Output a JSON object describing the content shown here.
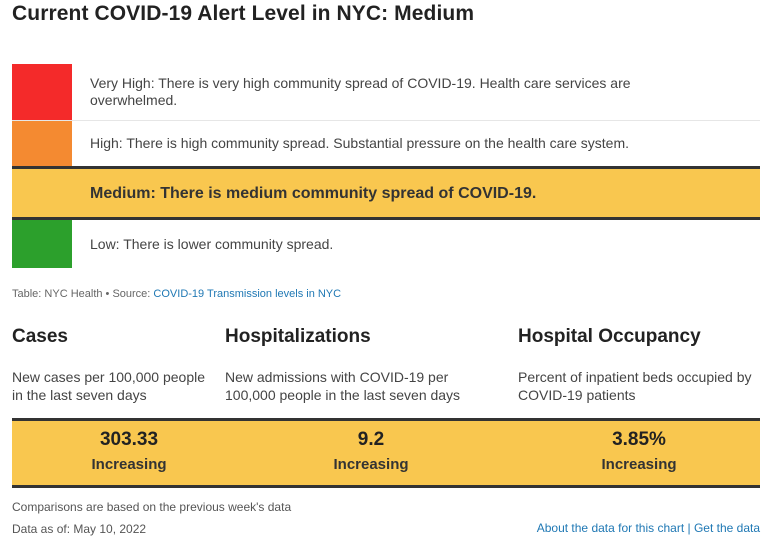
{
  "title": "Current COVID-19 Alert Level in NYC: Medium",
  "levels": [
    {
      "color": "#f42a2a",
      "text": "Very High: There is very high community spread of COVID-19. Health care services are overwhelmed."
    },
    {
      "color": "#f48a31",
      "text": "High: There is high community spread. Substantial pressure on the health care system."
    },
    {
      "color": "#f9c74f",
      "text": "Medium: There is medium community spread of COVID-19."
    },
    {
      "color": "#2ca02c",
      "text": "Low: There is lower community spread."
    }
  ],
  "source": {
    "prefix": "Table: NYC Health • Source: ",
    "link": "COVID-19 Transmission levels in NYC"
  },
  "stats": [
    {
      "heading": "Cases",
      "description": "New cases per 100,000 people in the last seven days",
      "value": "303.33",
      "trend": "Increasing"
    },
    {
      "heading": "Hospitalizations",
      "description": "New admissions with COVID-19 per 100,000 people in the last seven days",
      "value": "9.2",
      "trend": "Increasing"
    },
    {
      "heading": "Hospital Occupancy",
      "description": "Percent of inpatient beds occupied by COVID-19 patients",
      "value": "3.85%",
      "trend": "Increasing"
    }
  ],
  "footer": {
    "note": "Comparisons are based on the previous week's data",
    "as_of": "Data as of: May 10, 2022",
    "about_link": "About the data for this chart",
    "separator": " | ",
    "get_data_link": "Get the data"
  },
  "colors": {
    "highlight": "#f9c74f",
    "link": "#1f78b4"
  }
}
